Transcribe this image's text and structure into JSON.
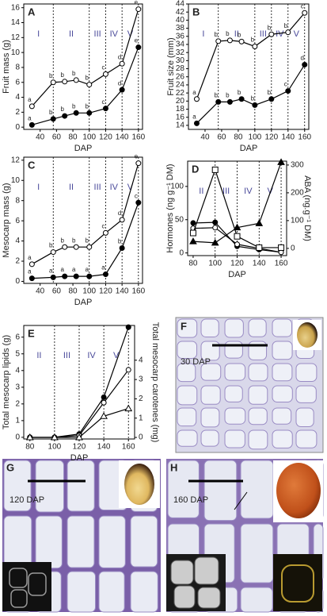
{
  "chart_data": [
    {
      "type": "line",
      "panel": "A",
      "x_label": "DAP",
      "y_label": "Fruit mass (g)",
      "x": [
        30,
        56,
        70,
        84,
        100,
        120,
        140,
        160
      ],
      "xlim": [
        20,
        165
      ],
      "xticks": [
        40,
        60,
        80,
        100,
        120,
        140,
        160
      ],
      "ylim": [
        -0.3,
        16.5
      ],
      "yticks": [
        0,
        2,
        4,
        6,
        8,
        10,
        12,
        14,
        16
      ],
      "phase_bounds": [
        56,
        100,
        120,
        140,
        160
      ],
      "phase_labels": [
        "I",
        "II",
        "III",
        "IV",
        "V"
      ],
      "series": [
        {
          "marker": "circle-filled",
          "color": "#000000",
          "values": [
            0.3,
            1.1,
            1.5,
            1.9,
            1.9,
            2.5,
            5,
            10.7
          ],
          "letters": [
            "a",
            "b",
            "b",
            "b",
            "b",
            "c",
            "d",
            "e"
          ]
        },
        {
          "marker": "circle-open",
          "color": "#000000",
          "values": [
            2.8,
            6,
            6.1,
            6.3,
            5.7,
            7.1,
            8.5,
            15.8
          ],
          "letters": [
            "a",
            "b",
            "b",
            "b",
            "b",
            "c",
            "d",
            "e"
          ]
        }
      ]
    },
    {
      "type": "line",
      "panel": "B",
      "x_label": "DAP",
      "y_label": "Fruit size (mm)",
      "x": [
        30,
        56,
        70,
        84,
        100,
        120,
        140,
        160
      ],
      "xlim": [
        20,
        165
      ],
      "xticks": [
        40,
        60,
        80,
        100,
        120,
        140,
        160
      ],
      "ylim": [
        13,
        44
      ],
      "yticks": [
        14,
        16,
        18,
        20,
        22,
        24,
        26,
        28,
        30,
        32,
        34,
        36,
        38,
        40,
        42,
        44
      ],
      "phase_bounds": [
        56,
        100,
        120,
        140,
        160
      ],
      "phase_labels": [
        "I",
        "II",
        "III",
        "IV",
        "V"
      ],
      "series": [
        {
          "marker": "circle-filled",
          "color": "#000000",
          "values": [
            14.5,
            19.8,
            19.8,
            20.5,
            19,
            20.5,
            22.5,
            29
          ],
          "letters": [
            "a",
            "b",
            "b",
            "b",
            "b",
            "b",
            "c",
            "d"
          ]
        },
        {
          "marker": "circle-open",
          "color": "#000000",
          "values": [
            20.5,
            34.8,
            35,
            34.7,
            33.5,
            36.5,
            37,
            41.8
          ],
          "letters": [
            "a",
            "b",
            "b",
            "b",
            "b",
            "b",
            "b",
            "c"
          ]
        }
      ]
    },
    {
      "type": "line",
      "panel": "C",
      "x_label": "DAP",
      "y_label": "Mesocarp mass (g)",
      "x": [
        30,
        56,
        70,
        84,
        100,
        120,
        140,
        160
      ],
      "xlim": [
        20,
        165
      ],
      "xticks": [
        40,
        60,
        80,
        100,
        120,
        140,
        160
      ],
      "ylim": [
        -0.2,
        12.3
      ],
      "yticks": [
        0,
        2,
        4,
        6,
        8,
        10,
        12
      ],
      "phase_bounds": [
        56,
        100,
        120,
        140,
        160
      ],
      "phase_labels": [
        "I",
        "II",
        "III",
        "IV",
        "V"
      ],
      "series": [
        {
          "marker": "circle-filled",
          "color": "#000000",
          "values": [
            0.3,
            0.4,
            0.5,
            0.5,
            0.5,
            0.7,
            3.3,
            7.8
          ],
          "letters": [
            "a",
            "a",
            "a",
            "a",
            "a",
            "a",
            "b",
            "c"
          ]
        },
        {
          "marker": "circle-open",
          "color": "#000000",
          "values": [
            1.7,
            2.9,
            3.4,
            3.4,
            3.4,
            4.8,
            6.1,
            11.7
          ],
          "letters": [
            "a",
            "b",
            "b",
            "b",
            "b",
            "c",
            "d",
            "e"
          ]
        }
      ]
    },
    {
      "type": "line",
      "panel": "D",
      "x_label": "DAP",
      "y_label": "Hormones (ng g⁻¹ DM)",
      "y2_label": "ABA (ng.g⁻¹ DM)",
      "x": [
        80,
        100,
        120,
        140,
        160
      ],
      "xlim": [
        75,
        165
      ],
      "xticks": [
        80,
        100,
        120,
        140,
        160
      ],
      "ylim": [
        -4,
        138
      ],
      "yticks": [
        0,
        50,
        100
      ],
      "y2lim": [
        -26,
        314
      ],
      "y2ticks": [
        0,
        100,
        200,
        300
      ],
      "phase_bounds": [
        100,
        120,
        140,
        160
      ],
      "phase_labels": [
        "II",
        "III",
        "IV",
        "V"
      ],
      "series": [
        {
          "marker": "circle-filled",
          "color": "#000000",
          "values": [
            45,
            46,
            10,
            5,
            1
          ]
        },
        {
          "marker": "circle-open",
          "color": "#000000",
          "values": [
            37,
            38,
            13,
            7,
            1
          ]
        },
        {
          "marker": "square-open",
          "color": "#000000",
          "values": [
            30,
            125,
            25,
            8,
            8
          ]
        },
        {
          "marker": "triangle-filled",
          "color": "#000000",
          "axis": "y2",
          "values": [
            25,
            20,
            75,
            90,
            310
          ]
        }
      ]
    },
    {
      "type": "line",
      "panel": "E",
      "x_label": "DAP",
      "y_label": "Total mesocarp lipids (g)",
      "y2_label": "Total mesocarp carotenes (mg)",
      "x": [
        80,
        100,
        120,
        140,
        160
      ],
      "xlim": [
        75,
        165
      ],
      "xticks": [
        80,
        100,
        120,
        140,
        160
      ],
      "ylim": [
        -0.1,
        6.7
      ],
      "yticks": [
        0,
        1,
        2,
        3,
        4,
        5,
        6
      ],
      "y2lim": [
        -0.08,
        5.8
      ],
      "y2ticks": [
        0,
        1,
        2,
        3,
        4
      ],
      "phase_bounds": [
        100,
        120,
        140,
        160
      ],
      "phase_labels": [
        "II",
        "III",
        "IV",
        "V"
      ],
      "series": [
        {
          "marker": "circle-filled",
          "color": "#000000",
          "values": [
            0,
            0,
            0.2,
            2.4,
            6.6
          ]
        },
        {
          "marker": "circle-open",
          "color": "#000000",
          "axis": "y2",
          "values": [
            0,
            0,
            0.1,
            1.8,
            3.5
          ]
        },
        {
          "marker": "triangle-open",
          "color": "#000000",
          "axis": "y2",
          "values": [
            0,
            0,
            0,
            1.1,
            1.5
          ]
        }
      ]
    }
  ],
  "micrographs": [
    {
      "panel": "F",
      "label": "30 DAP"
    },
    {
      "panel": "G",
      "label": "120 DAP"
    },
    {
      "panel": "H",
      "label": "160 DAP"
    }
  ]
}
